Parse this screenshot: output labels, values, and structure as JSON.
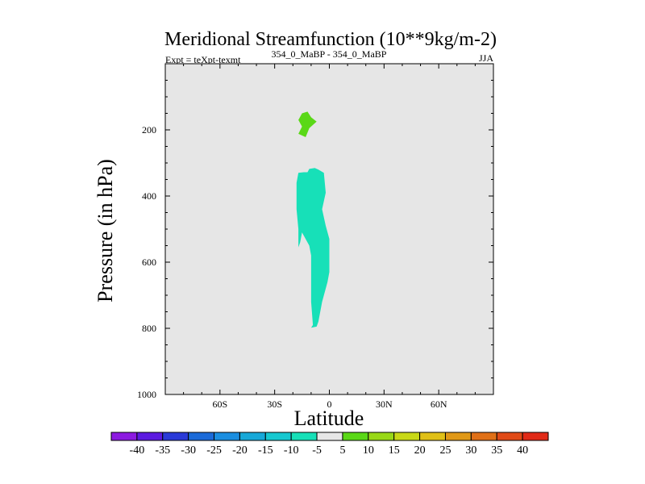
{
  "chart_data": {
    "type": "contour",
    "title": "Meridional Streamfunction (10**9kg/m-2)",
    "subtitle_left": "Expt = teXpt-texmt",
    "subtitle_center": "354_0_MaBP - 354_0_MaBP",
    "subtitle_right": "JJA",
    "xlabel": "Latitude",
    "ylabel": "Pressure (in hPa)",
    "xlim": [
      -90,
      90
    ],
    "ylim": [
      1000,
      0
    ],
    "y_inverted": true,
    "xticks": [
      {
        "value": -60,
        "label": "60S"
      },
      {
        "value": -30,
        "label": "30S"
      },
      {
        "value": 0,
        "label": "0"
      },
      {
        "value": 30,
        "label": "30N"
      },
      {
        "value": 60,
        "label": "60N"
      }
    ],
    "yticks": [
      {
        "value": 200,
        "label": "200"
      },
      {
        "value": 400,
        "label": "400"
      },
      {
        "value": 600,
        "label": "600"
      },
      {
        "value": 800,
        "label": "800"
      },
      {
        "value": 1000,
        "label": "1000"
      }
    ],
    "background_color": "#e6e6e6",
    "contour_levels": [
      -40,
      -35,
      -30,
      -25,
      -20,
      -15,
      -10,
      -5,
      5,
      10,
      15,
      20,
      25,
      30,
      35,
      40
    ],
    "colorbar": {
      "colors": [
        "#8c1ae0",
        "#5c1ae0",
        "#2a3ad8",
        "#1b6ad8",
        "#1b8ee0",
        "#17a8d8",
        "#17c8d0",
        "#17e0b8",
        "#e6e6e6",
        "#5ad817",
        "#98d817",
        "#c8d817",
        "#e0c017",
        "#e09817",
        "#e07017",
        "#e04a17",
        "#e02a17"
      ],
      "labels": [
        "-40",
        "-35",
        "-30",
        "-25",
        "-20",
        "-15",
        "-10",
        "-5",
        "5",
        "10",
        "15",
        "20",
        "25",
        "30",
        "35",
        "40"
      ]
    },
    "filled_regions": [
      {
        "name": "positive-5-to-10",
        "color": "#5ad817",
        "points": [
          [
            -15,
            150
          ],
          [
            -12,
            145
          ],
          [
            -10,
            162
          ],
          [
            -7,
            175
          ],
          [
            -11,
            195
          ],
          [
            -13,
            222
          ],
          [
            -17,
            212
          ],
          [
            -15,
            190
          ],
          [
            -17,
            170
          ]
        ]
      },
      {
        "name": "negative-5-to-10",
        "color": "#17e0b8",
        "points": [
          [
            -17,
            330
          ],
          [
            -14,
            328
          ],
          [
            -12,
            328
          ],
          [
            -11,
            318
          ],
          [
            -8,
            315
          ],
          [
            -6,
            320
          ],
          [
            -3,
            330
          ],
          [
            -2,
            390
          ],
          [
            -4,
            440
          ],
          [
            -2,
            490
          ],
          [
            0,
            530
          ],
          [
            0,
            570
          ],
          [
            0,
            630
          ],
          [
            -1,
            660
          ],
          [
            -4,
            720
          ],
          [
            -6,
            780
          ],
          [
            -7,
            795
          ],
          [
            -10,
            798
          ],
          [
            -9,
            790
          ],
          [
            -10,
            720
          ],
          [
            -10,
            650
          ],
          [
            -10,
            580
          ],
          [
            -11,
            550
          ],
          [
            -15,
            510
          ],
          [
            -16,
            540
          ],
          [
            -17,
            555
          ],
          [
            -17,
            500
          ],
          [
            -18,
            440
          ],
          [
            -18,
            360
          ]
        ]
      }
    ]
  }
}
